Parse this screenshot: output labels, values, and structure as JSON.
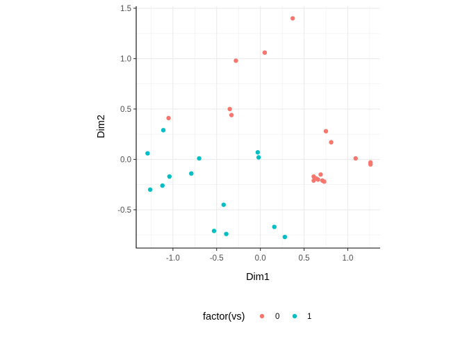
{
  "chart_data": {
    "type": "scatter",
    "xlabel": "Dim1",
    "ylabel": "Dim2",
    "xlim": [
      -1.42,
      1.37
    ],
    "ylim": [
      -0.88,
      1.52
    ],
    "x_ticks": [
      -1.0,
      -0.5,
      0.0,
      0.5,
      1.0
    ],
    "x_tick_labels": [
      "-1.0",
      "-0.5",
      "0.0",
      "0.5",
      "1.0"
    ],
    "y_ticks": [
      -0.5,
      0.0,
      0.5,
      1.0,
      1.5
    ],
    "y_tick_labels": [
      "-0.5",
      "0.0",
      "0.5",
      "1.0",
      "1.5"
    ],
    "grid": true,
    "legend": {
      "title": "factor(vs)",
      "position": "bottom",
      "entries": [
        "0",
        "1"
      ]
    },
    "series": [
      {
        "name": "0",
        "color": "#F8766D",
        "points": [
          [
            0.37,
            1.4
          ],
          [
            0.05,
            1.06
          ],
          [
            -0.28,
            0.98
          ],
          [
            -1.05,
            0.41
          ],
          [
            -0.35,
            0.5
          ],
          [
            -0.33,
            0.44
          ],
          [
            0.75,
            0.28
          ],
          [
            0.81,
            0.17
          ],
          [
            1.09,
            0.01
          ],
          [
            1.26,
            -0.03
          ],
          [
            1.26,
            -0.05
          ],
          [
            0.61,
            -0.17
          ],
          [
            0.61,
            -0.21
          ],
          [
            0.64,
            -0.19
          ],
          [
            0.66,
            -0.2
          ],
          [
            0.69,
            -0.15
          ],
          [
            0.71,
            -0.21
          ],
          [
            0.73,
            -0.22
          ]
        ]
      },
      {
        "name": "1",
        "color": "#00BFC4",
        "points": [
          [
            -1.11,
            0.29
          ],
          [
            -1.29,
            0.06
          ],
          [
            -0.7,
            0.01
          ],
          [
            -0.03,
            0.07
          ],
          [
            -0.02,
            0.02
          ],
          [
            -0.79,
            -0.14
          ],
          [
            -1.04,
            -0.17
          ],
          [
            -1.12,
            -0.26
          ],
          [
            -1.26,
            -0.3
          ],
          [
            -0.42,
            -0.45
          ],
          [
            -0.53,
            -0.71
          ],
          [
            -0.39,
            -0.74
          ],
          [
            0.16,
            -0.67
          ],
          [
            0.28,
            -0.77
          ]
        ]
      }
    ]
  }
}
